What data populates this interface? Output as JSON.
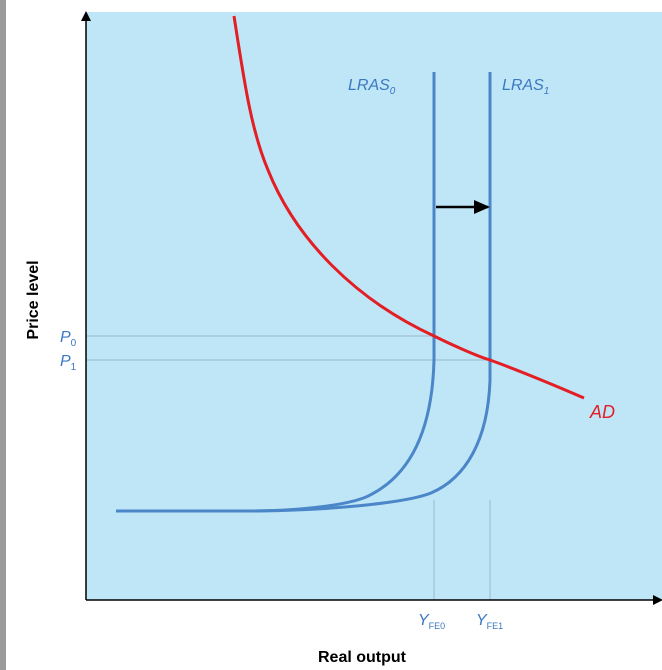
{
  "diagram": {
    "y_axis_label": "Price level",
    "x_axis_label": "Real output",
    "curves": {
      "ad": {
        "label_main": "AD",
        "label_sub": ""
      },
      "lras0": {
        "label_main": "LRAS",
        "label_sub": "0"
      },
      "lras1": {
        "label_main": "LRAS",
        "label_sub": "1"
      }
    },
    "price_levels": {
      "p0": {
        "main": "P",
        "sub": "0"
      },
      "p1": {
        "main": "P",
        "sub": "1"
      }
    },
    "output_levels": {
      "yfe0": {
        "main": "Y",
        "sub": "FE0"
      },
      "yfe1": {
        "main": "Y",
        "sub": "FE1"
      }
    }
  },
  "colors": {
    "plot_background": "#bfe6f7",
    "ad_curve": "#e31e24",
    "lras_curve": "#4a86c8",
    "label_blue": "#3a78c0",
    "guide_line": "#9bb8cc",
    "axis": "#000000",
    "arrow": "#000000"
  }
}
